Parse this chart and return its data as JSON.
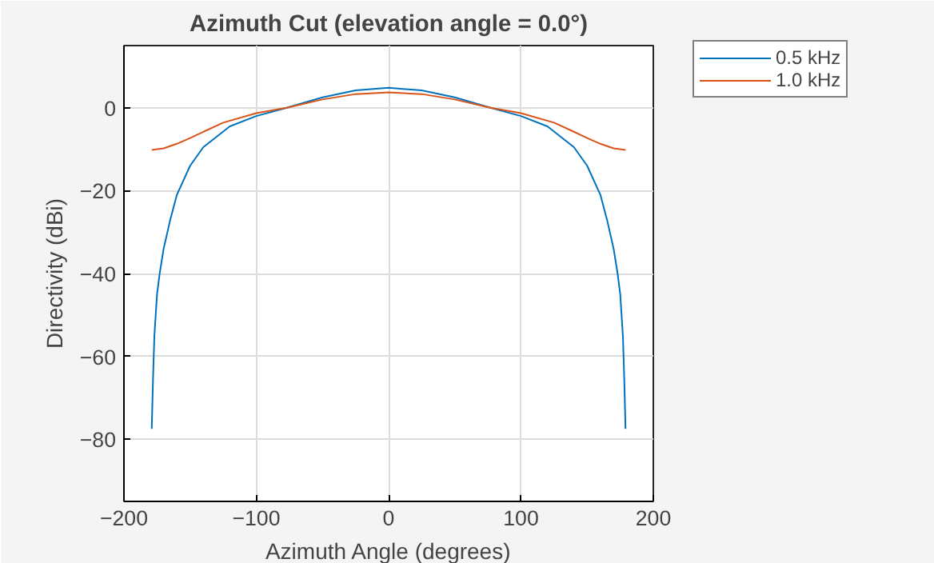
{
  "chart_data": {
    "type": "line",
    "title": "Azimuth Cut (elevation angle = 0.0°)",
    "xlabel": "Azimuth Angle (degrees)",
    "ylabel": "Directivity (dBi)",
    "xlim": [
      -200,
      200
    ],
    "ylim": [
      -95,
      15
    ],
    "xticks": [
      -200,
      -100,
      0,
      100,
      200
    ],
    "yticks": [
      -80,
      -60,
      -40,
      -20,
      0
    ],
    "grid": true,
    "legend": "top right",
    "line_style": "solid",
    "series": [
      {
        "name": "0.5 kHz",
        "color": "#0072bd",
        "x": [
          -179,
          -178,
          -177,
          -175,
          -173,
          -170,
          -165,
          -160,
          -150,
          -140,
          -120,
          -100,
          -77,
          -50,
          -25,
          0,
          25,
          50,
          77,
          100,
          120,
          140,
          150,
          160,
          165,
          170,
          173,
          175,
          177,
          178,
          179
        ],
        "values": [
          -77.5,
          -65,
          -55,
          -45,
          -40,
          -34,
          -27,
          -21,
          -14,
          -9.5,
          -4.5,
          -2,
          0,
          2.5,
          4.2,
          4.8,
          4.2,
          2.5,
          0,
          -2,
          -4.5,
          -9.5,
          -14,
          -21,
          -27,
          -34,
          -40,
          -45,
          -55,
          -65,
          -77.5
        ]
      },
      {
        "name": "1.0 kHz",
        "color": "#d95319",
        "x": [
          -179,
          -170,
          -160,
          -150,
          -140,
          -125,
          -100,
          -77,
          -50,
          -25,
          0,
          25,
          50,
          77,
          100,
          125,
          140,
          150,
          160,
          170,
          179
        ],
        "values": [
          -10.2,
          -9.8,
          -8.7,
          -7.3,
          -5.8,
          -3.6,
          -1.3,
          0,
          2,
          3.3,
          3.7,
          3.3,
          2,
          0,
          -1.3,
          -3.6,
          -5.8,
          -7.3,
          -8.7,
          -9.8,
          -10.2
        ]
      }
    ]
  }
}
